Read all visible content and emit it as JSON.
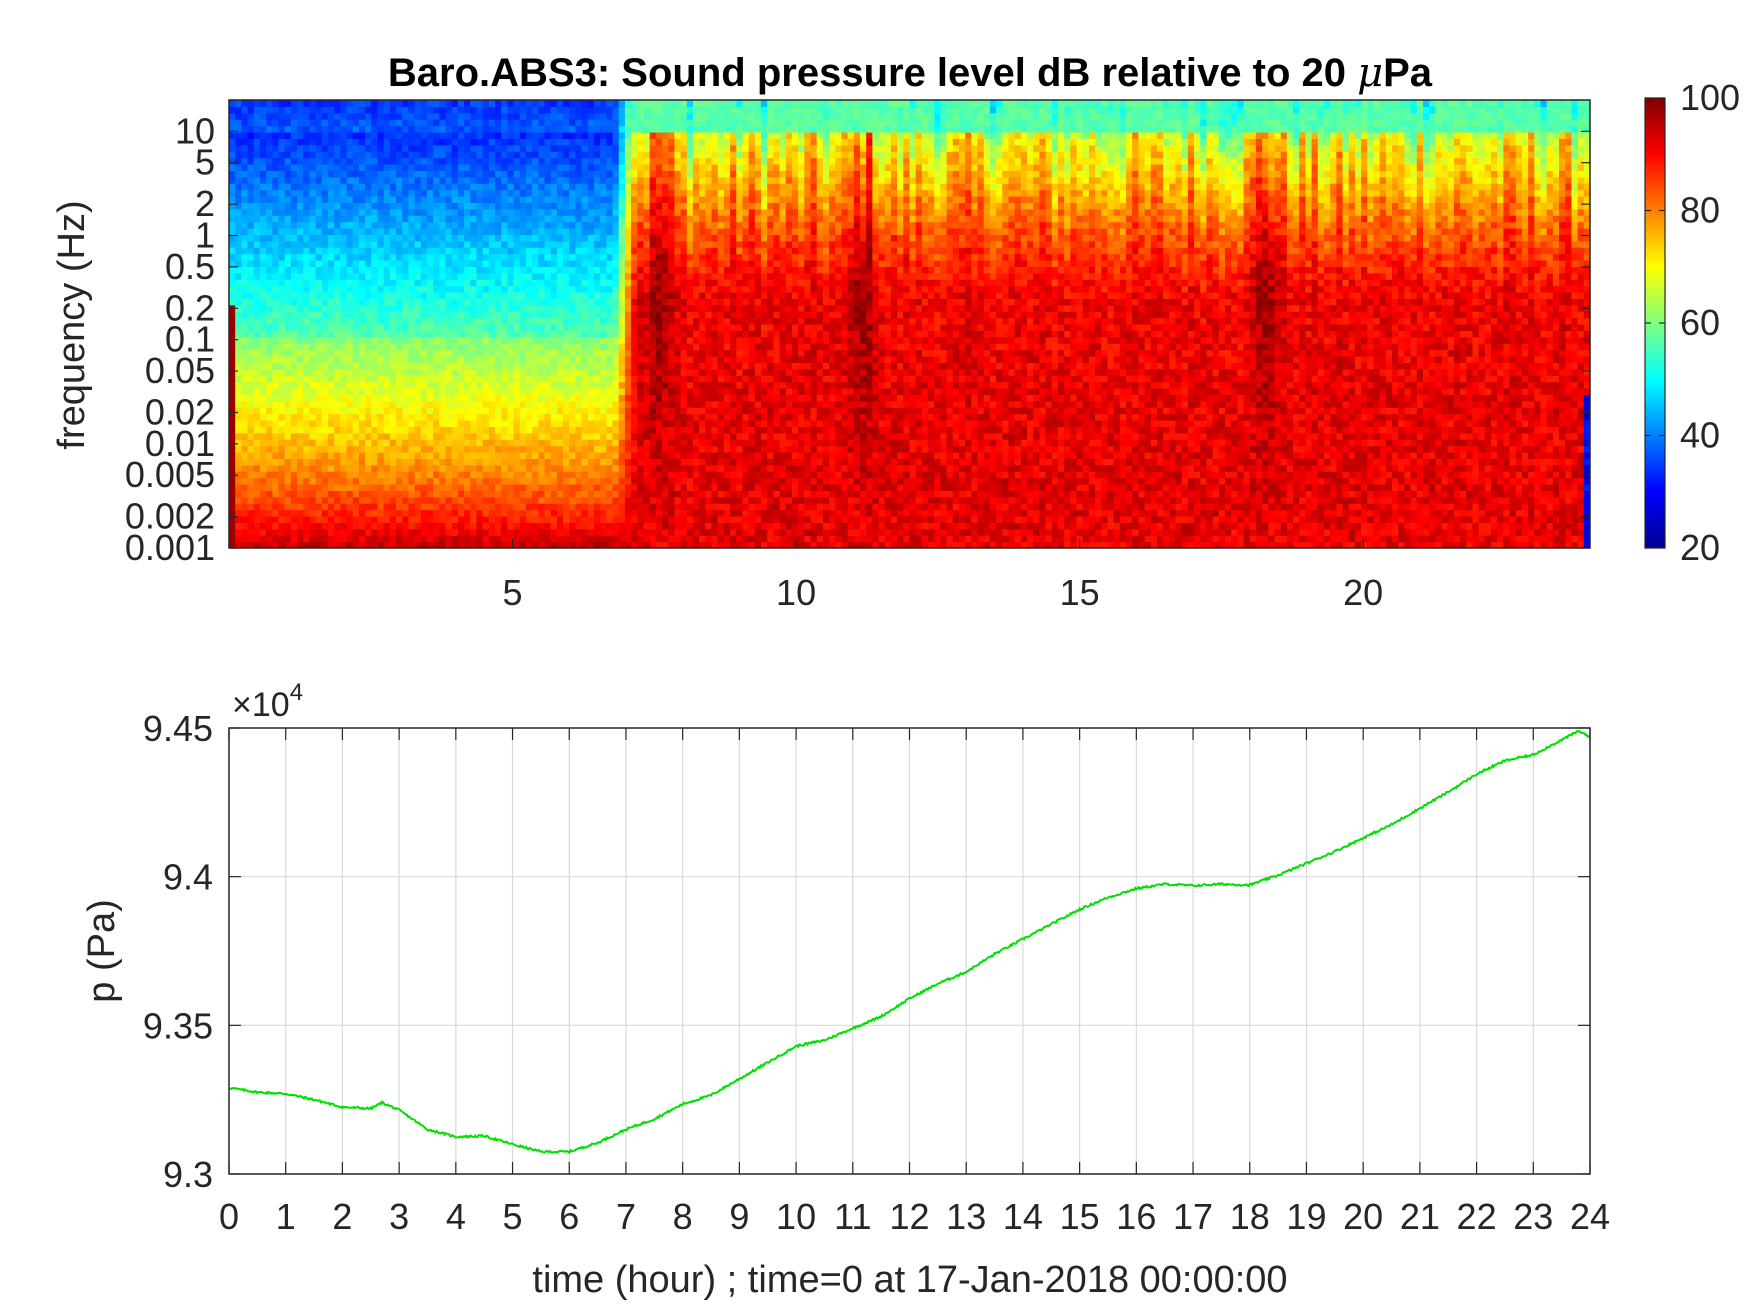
{
  "figure": {
    "title_prefix": "Baro.ABS3: Sound pressure level dB relative to 20 ",
    "title_mu": "μ",
    "title_suffix": "Pa"
  },
  "chart_data": [
    {
      "type": "heatmap",
      "ylabel": "frequency (Hz)",
      "xlim": [
        0,
        24
      ],
      "x_ticks": [
        5,
        10,
        15,
        20
      ],
      "y_scale": "log",
      "ylim": [
        0.001,
        20
      ],
      "y_ticks": [
        0.001,
        0.002,
        0.005,
        0.01,
        0.02,
        0.05,
        0.1,
        0.2,
        0.5,
        1,
        2,
        5,
        10
      ],
      "y_tick_labels": [
        "0.001",
        "0.002",
        "0.005",
        "0.01",
        "0.02",
        "0.05",
        "0.1",
        "0.2",
        "0.5",
        "1",
        "2",
        "5",
        "10"
      ],
      "colormap": "jet",
      "colorbar": {
        "range": [
          20,
          100
        ],
        "ticks": [
          20,
          40,
          60,
          80,
          100
        ],
        "tick_labels": [
          "20",
          "40",
          "60",
          "80",
          "100"
        ],
        "placement": "right"
      },
      "description_levels": {
        "quiet_period_hours": [
          0,
          6.8
        ],
        "active_period_hours": [
          6.8,
          24
        ],
        "high_freq_level_db": 50,
        "low_freq_level_db": 90
      }
    },
    {
      "type": "line",
      "xlabel": "time (hour) ; time=0 at 17-Jan-2018 00:00:00",
      "ylabel": "p (Pa)",
      "y_multiplier": "×10",
      "y_multiplier_exp": "4",
      "xlim": [
        0,
        24
      ],
      "ylim": [
        93000,
        94500
      ],
      "x_ticks": [
        0,
        1,
        2,
        3,
        4,
        5,
        6,
        7,
        8,
        9,
        10,
        11,
        12,
        13,
        14,
        15,
        16,
        17,
        18,
        19,
        20,
        21,
        22,
        23,
        24
      ],
      "x_tick_labels": [
        "0",
        "1",
        "2",
        "3",
        "4",
        "5",
        "6",
        "7",
        "8",
        "9",
        "10",
        "11",
        "12",
        "13",
        "14",
        "15",
        "16",
        "17",
        "18",
        "19",
        "20",
        "21",
        "22",
        "23",
        "24"
      ],
      "y_ticks": [
        93000,
        93500,
        94000,
        94500
      ],
      "y_tick_labels": [
        "9.3",
        "9.35",
        "9.4",
        "9.45"
      ],
      "grid": true,
      "line_color": "#00e000",
      "series": [
        {
          "x": [
            0,
            0.5,
            1,
            1.5,
            2,
            2.5,
            2.7,
            3,
            3.5,
            4,
            4.5,
            5,
            5.5,
            6,
            6.5,
            7,
            7.5,
            8,
            8.5,
            9,
            9.5,
            10,
            10.5,
            11,
            11.5,
            12,
            12.5,
            13,
            13.5,
            14,
            14.5,
            15,
            15.5,
            16,
            16.5,
            17,
            17.5,
            18,
            18.5,
            19,
            19.5,
            20,
            20.5,
            21,
            21.5,
            22,
            22.5,
            23,
            23.5,
            23.8,
            24
          ],
          "y": [
            93290,
            93275,
            93270,
            93250,
            93225,
            93220,
            93240,
            93215,
            93150,
            93125,
            93128,
            93100,
            93075,
            93075,
            93105,
            93150,
            93185,
            93235,
            93265,
            93320,
            93375,
            93430,
            93450,
            93490,
            93530,
            93590,
            93640,
            93680,
            93740,
            93790,
            93840,
            93890,
            93930,
            93960,
            93975,
            93970,
            93975,
            93972,
            94005,
            94045,
            94085,
            94130,
            94175,
            94230,
            94285,
            94345,
            94390,
            94410,
            94460,
            94490,
            94470
          ]
        }
      ]
    }
  ]
}
